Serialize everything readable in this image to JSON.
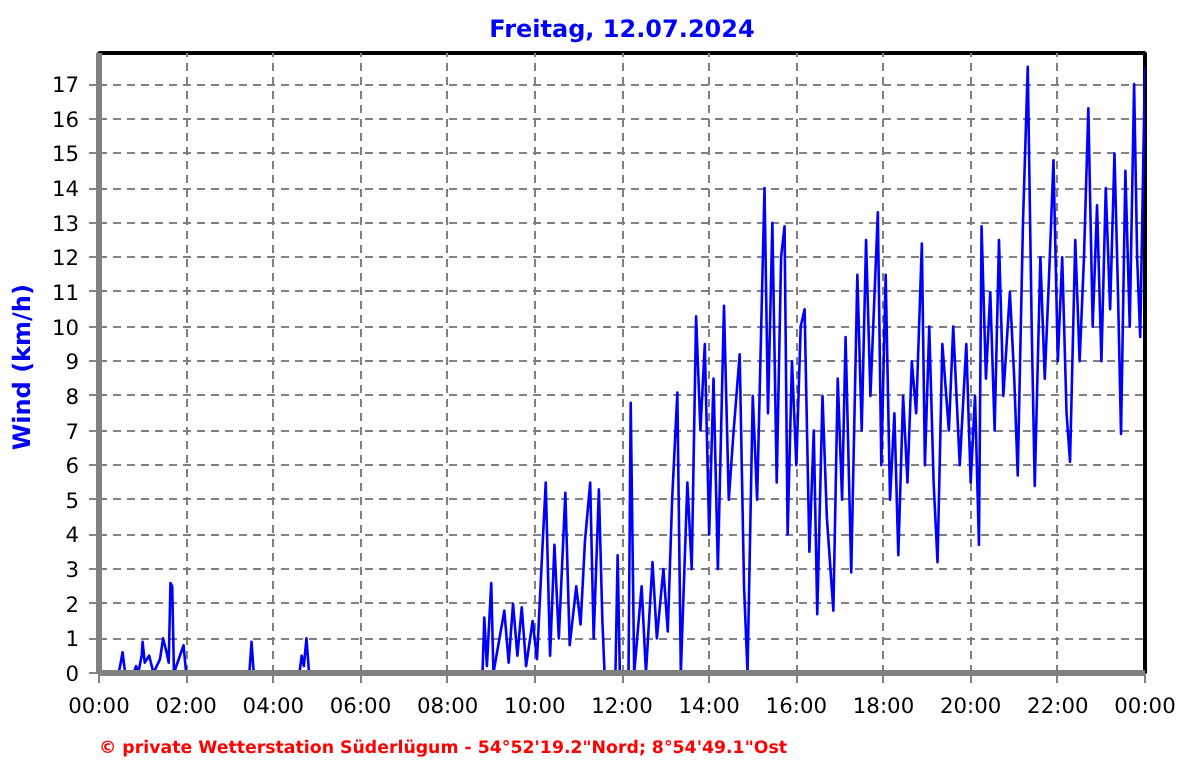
{
  "chart_data": {
    "type": "line",
    "title": "Freitag, 12.07.2024",
    "ylabel": "Wind  (km/h)",
    "annotations": [
      "© private Wetterstation Süderlügum - 54°52'19.2\"Nord; 8°54'49.1\"Ost"
    ],
    "xlim": [
      0,
      24
    ],
    "ylim": [
      0,
      17.9
    ],
    "grid": true,
    "xticks": [
      {
        "value": 0,
        "label": "00:00"
      },
      {
        "value": 2,
        "label": "02:00"
      },
      {
        "value": 4,
        "label": "04:00"
      },
      {
        "value": 6,
        "label": "06:00"
      },
      {
        "value": 8,
        "label": "08:00"
      },
      {
        "value": 10,
        "label": "10:00"
      },
      {
        "value": 12,
        "label": "12:00"
      },
      {
        "value": 14,
        "label": "14:00"
      },
      {
        "value": 16,
        "label": "16:00"
      },
      {
        "value": 18,
        "label": "18:00"
      },
      {
        "value": 20,
        "label": "20:00"
      },
      {
        "value": 22,
        "label": "22:00"
      },
      {
        "value": 24,
        "label": "00:00"
      }
    ],
    "yticks": [
      0,
      1,
      2,
      3,
      4,
      5,
      6,
      7,
      8,
      9,
      10,
      11,
      12,
      13,
      14,
      15,
      16,
      17
    ],
    "series": [
      {
        "color": "#0000ff",
        "x": [
          0,
          0.45,
          0.5,
          0.54,
          0.6,
          0.8,
          0.85,
          0.9,
          0.98,
          1.0,
          1.05,
          1.15,
          1.25,
          1.4,
          1.47,
          1.55,
          1.6,
          1.64,
          1.68,
          1.72,
          1.94,
          2.0,
          3.45,
          3.5,
          3.55,
          4.6,
          4.65,
          4.7,
          4.76,
          4.82,
          8.8,
          8.84,
          8.9,
          9.0,
          9.05,
          9.3,
          9.4,
          9.5,
          9.6,
          9.7,
          9.8,
          9.95,
          10.05,
          10.15,
          10.25,
          10.35,
          10.45,
          10.55,
          10.7,
          10.8,
          10.95,
          11.05,
          11.15,
          11.27,
          11.35,
          11.47,
          11.55,
          11.6,
          11.85,
          11.9,
          11.95,
          12.15,
          12.2,
          12.28,
          12.45,
          12.55,
          12.7,
          12.8,
          12.95,
          13.05,
          13.15,
          13.27,
          13.35,
          13.5,
          13.6,
          13.7,
          13.8,
          13.9,
          14.0,
          14.1,
          14.2,
          14.34,
          14.45,
          14.55,
          14.7,
          14.8,
          14.88,
          15.0,
          15.1,
          15.27,
          15.35,
          15.45,
          15.55,
          15.65,
          15.73,
          15.8,
          15.9,
          16.0,
          16.1,
          16.19,
          16.3,
          16.4,
          16.48,
          16.6,
          16.7,
          16.85,
          16.95,
          17.05,
          17.13,
          17.26,
          17.4,
          17.5,
          17.6,
          17.7,
          17.87,
          17.95,
          18.05,
          18.15,
          18.25,
          18.34,
          18.45,
          18.55,
          18.65,
          18.75,
          18.88,
          18.95,
          19.05,
          19.15,
          19.24,
          19.35,
          19.5,
          19.6,
          19.75,
          19.9,
          20.0,
          20.1,
          20.19,
          20.25,
          20.35,
          20.45,
          20.55,
          20.65,
          20.75,
          20.9,
          21.0,
          21.08,
          21.2,
          21.31,
          21.4,
          21.47,
          21.6,
          21.7,
          21.8,
          21.9,
          22.0,
          22.1,
          22.2,
          22.28,
          22.4,
          22.5,
          22.6,
          22.7,
          22.8,
          22.9,
          23.0,
          23.1,
          23.2,
          23.3,
          23.38,
          23.45,
          23.55,
          23.65,
          23.75,
          23.82,
          23.89,
          23.95,
          24.0
        ],
        "values": [
          0,
          0,
          0.3,
          0.6,
          0,
          0,
          0.2,
          0,
          0.5,
          0.9,
          0.3,
          0.5,
          0,
          0.4,
          1.0,
          0.6,
          0.3,
          2.6,
          2.5,
          0,
          0.8,
          0,
          0,
          0.9,
          0,
          0,
          0.5,
          0.2,
          1.0,
          0,
          0,
          1.6,
          0.2,
          2.6,
          0,
          1.8,
          0.3,
          2.0,
          0.5,
          1.9,
          0.2,
          1.5,
          0.4,
          3.0,
          5.5,
          0.5,
          3.7,
          1.0,
          5.2,
          0.8,
          2.5,
          1.4,
          3.8,
          5.5,
          1.0,
          5.3,
          1.5,
          0,
          0,
          3.4,
          0,
          0,
          7.8,
          0,
          2.5,
          0,
          3.2,
          1.0,
          3.0,
          1.2,
          5.0,
          8.1,
          0,
          5.5,
          3.0,
          10.3,
          7.0,
          9.5,
          4.0,
          8.5,
          3.0,
          10.6,
          5.0,
          6.8,
          9.2,
          2.5,
          0,
          8.0,
          5.0,
          14.0,
          7.5,
          13.0,
          5.5,
          12.0,
          12.9,
          4.0,
          9.0,
          6.0,
          10.0,
          10.5,
          3.5,
          7.0,
          1.7,
          8.0,
          4.5,
          1.8,
          8.5,
          5.0,
          9.7,
          2.9,
          11.5,
          7.0,
          12.5,
          8.0,
          13.3,
          6.0,
          11.5,
          5.0,
          7.5,
          3.4,
          8.0,
          5.5,
          9.0,
          7.5,
          12.4,
          6.0,
          10.0,
          5.5,
          3.2,
          9.5,
          7.0,
          10.0,
          6.0,
          9.5,
          5.5,
          8.0,
          3.7,
          12.9,
          8.5,
          11.0,
          7.0,
          12.5,
          8.0,
          11.0,
          8.5,
          5.7,
          13.0,
          17.5,
          10.0,
          5.4,
          12.0,
          8.5,
          11.5,
          14.8,
          9.0,
          12.0,
          7.5,
          6.1,
          12.5,
          9.0,
          12.0,
          16.3,
          10.0,
          13.5,
          9.0,
          14.0,
          10.5,
          15.0,
          11.0,
          6.9,
          14.5,
          10.0,
          17.0,
          12.0,
          9.7,
          14.0,
          17.5
        ]
      }
    ]
  }
}
